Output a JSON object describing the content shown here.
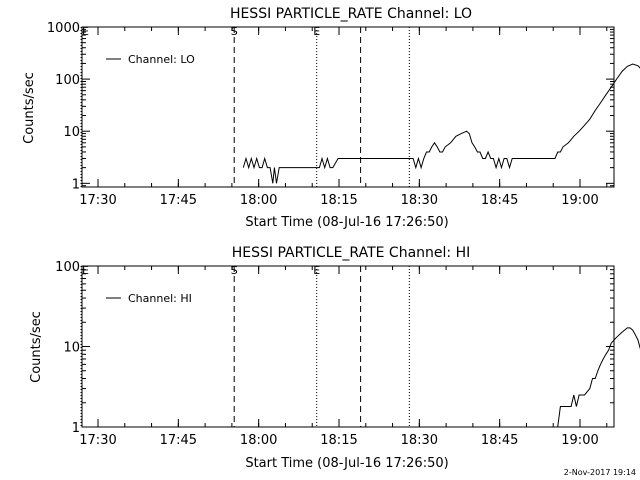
{
  "footer_date": "2-Nov-2017 19:14",
  "chart_data": [
    {
      "type": "line",
      "title": "HESSI PARTICLE_RATE Channel: LO",
      "xlabel": "Start Time (08-Jul-16 17:26:50)",
      "ylabel": "Counts/sec",
      "yscale": "log",
      "ylim": [
        0.85,
        1000
      ],
      "xlim_minutes": [
        17.5,
        62.0
      ],
      "x_ticks": [
        "17:30",
        "17:45",
        "18:00",
        "18:15",
        "18:30",
        "18:45",
        "19:00"
      ],
      "y_ticks": [
        "1",
        "10",
        "100",
        "1000"
      ],
      "legend": "Channel: LO",
      "markers": [
        {
          "label": "E",
          "minute": 0.0,
          "style": "dotted"
        },
        {
          "label": "S",
          "minute": 28.6,
          "style": "dashed"
        },
        {
          "label": "E",
          "minute": 44.0,
          "style": "dotted"
        },
        {
          "label": "",
          "minute": 52.2,
          "style": "dashed"
        },
        {
          "label": "",
          "minute": 61.3,
          "style": "dotted"
        }
      ],
      "series": [
        {
          "points": [
            [
              30.3,
              2
            ],
            [
              30.8,
              3
            ],
            [
              31.3,
              2
            ],
            [
              31.8,
              3
            ],
            [
              32.3,
              2
            ],
            [
              32.8,
              3
            ],
            [
              33.3,
              2
            ],
            [
              33.8,
              2
            ],
            [
              34.3,
              3
            ],
            [
              34.8,
              2
            ],
            [
              35.3,
              2
            ],
            [
              35.8,
              1
            ],
            [
              36.1,
              2
            ],
            [
              36.5,
              1
            ],
            [
              37.0,
              2
            ],
            [
              38.0,
              2
            ],
            [
              39.0,
              2
            ],
            [
              40.0,
              2
            ],
            [
              41.0,
              2
            ],
            [
              42.0,
              2
            ],
            [
              43.0,
              2
            ],
            [
              44.5,
              2
            ],
            [
              45.0,
              3
            ],
            [
              45.5,
              2
            ],
            [
              46.0,
              3
            ],
            [
              46.5,
              2
            ],
            [
              47.0,
              2
            ],
            [
              48.0,
              3
            ],
            [
              49.5,
              3
            ],
            [
              51.0,
              3
            ],
            [
              52.5,
              3
            ],
            [
              54.0,
              3
            ],
            [
              55.0,
              3
            ],
            [
              56.0,
              3
            ],
            [
              57.0,
              3
            ],
            [
              58.0,
              3
            ],
            [
              59.0,
              3
            ],
            [
              60.0,
              3
            ],
            [
              61.0,
              3
            ],
            [
              62.0,
              3
            ],
            [
              62.5,
              2
            ],
            [
              63.0,
              3
            ],
            [
              63.5,
              2
            ],
            [
              64.0,
              3
            ],
            [
              64.5,
              4
            ],
            [
              65.0,
              4
            ],
            [
              65.5,
              5
            ],
            [
              66.0,
              6
            ],
            [
              66.5,
              5
            ],
            [
              67.0,
              4
            ],
            [
              67.5,
              4
            ],
            [
              68.0,
              5
            ],
            [
              69.0,
              6
            ],
            [
              70.0,
              8
            ],
            [
              71.0,
              9
            ],
            [
              72.0,
              10
            ],
            [
              72.5,
              9
            ],
            [
              73.0,
              6
            ],
            [
              73.5,
              5
            ],
            [
              74.0,
              4
            ],
            [
              74.5,
              4
            ],
            [
              75.0,
              3
            ],
            [
              75.5,
              3
            ],
            [
              76.0,
              4
            ],
            [
              76.5,
              3
            ],
            [
              77.0,
              3
            ],
            [
              77.5,
              2
            ],
            [
              78.0,
              3
            ],
            [
              78.5,
              2
            ],
            [
              79.0,
              3
            ],
            [
              79.5,
              3
            ],
            [
              80.0,
              2
            ],
            [
              80.5,
              3
            ],
            [
              81.0,
              3
            ],
            [
              82.0,
              3
            ],
            [
              83.0,
              3
            ],
            [
              84.0,
              3
            ],
            [
              85.0,
              3
            ],
            [
              86.0,
              3
            ],
            [
              87.0,
              3
            ],
            [
              88.0,
              3
            ],
            [
              88.5,
              3
            ],
            [
              89.0,
              4
            ],
            [
              89.5,
              4
            ],
            [
              90.0,
              5
            ],
            [
              91.0,
              6
            ],
            [
              92.0,
              8
            ],
            [
              93.0,
              10
            ],
            [
              94.0,
              13
            ],
            [
              95.0,
              17
            ],
            [
              96.0,
              25
            ],
            [
              97.0,
              35
            ],
            [
              98.0,
              50
            ],
            [
              99.0,
              70
            ],
            [
              100.0,
              100
            ],
            [
              101.0,
              140
            ],
            [
              102.0,
              175
            ],
            [
              103.0,
              195
            ],
            [
              104.0,
              180
            ],
            [
              105.0,
              140
            ],
            [
              106.0,
              100
            ],
            [
              107.0,
              70
            ],
            [
              108.0,
              40
            ],
            [
              109.0,
              20
            ],
            [
              110.0,
              10
            ],
            [
              110.5,
              8
            ],
            [
              111.0,
              6
            ],
            [
              111.5,
              5
            ],
            [
              112.0,
              4
            ],
            [
              112.5,
              5
            ],
            [
              113.0,
              6
            ],
            [
              113.5,
              5
            ],
            [
              114.0,
              4
            ],
            [
              114.5,
              4
            ],
            [
              115.0,
              5
            ],
            [
              115.5,
              4
            ],
            [
              116.0,
              4
            ],
            [
              116.5,
              3
            ],
            [
              117.0,
              3
            ],
            [
              117.5,
              3
            ],
            [
              118.0,
              2
            ],
            [
              118.5,
              2
            ]
          ]
        }
      ]
    },
    {
      "type": "line",
      "title": "HESSI PARTICLE_RATE Channel: HI",
      "xlabel": "Start Time (08-Jul-16 17:26:50)",
      "ylabel": "Counts/sec",
      "yscale": "log",
      "ylim": [
        1,
        100
      ],
      "xlim_minutes": [
        17.5,
        62.0
      ],
      "x_ticks": [
        "17:30",
        "17:45",
        "18:00",
        "18:15",
        "18:30",
        "18:45",
        "19:00"
      ],
      "y_ticks": [
        "1",
        "10",
        "100"
      ],
      "legend": "Channel: HI",
      "markers": [
        {
          "label": "E",
          "minute": 0.0,
          "style": "dotted"
        },
        {
          "label": "S",
          "minute": 28.6,
          "style": "dashed"
        },
        {
          "label": "E",
          "minute": 44.0,
          "style": "dotted"
        },
        {
          "label": "",
          "minute": 52.2,
          "style": "dashed"
        },
        {
          "label": "",
          "minute": 61.3,
          "style": "dotted"
        }
      ],
      "series": [
        {
          "points": [
            [
              88.0,
              1
            ],
            [
              89.0,
              1
            ],
            [
              89.5,
              1.8
            ],
            [
              90.5,
              1.8
            ],
            [
              91.5,
              1.8
            ],
            [
              92.0,
              2.5
            ],
            [
              92.5,
              1.8
            ],
            [
              93.0,
              2.5
            ],
            [
              94.0,
              2.5
            ],
            [
              95.0,
              3
            ],
            [
              95.5,
              4
            ],
            [
              96.0,
              4
            ],
            [
              96.5,
              5
            ],
            [
              97.0,
              6
            ],
            [
              97.5,
              7
            ],
            [
              98.0,
              8
            ],
            [
              98.5,
              9
            ],
            [
              99.0,
              11
            ],
            [
              99.5,
              12
            ],
            [
              100.0,
              13
            ],
            [
              100.5,
              14
            ],
            [
              101.0,
              15
            ],
            [
              101.5,
              16
            ],
            [
              102.0,
              17
            ],
            [
              102.5,
              17
            ],
            [
              103.0,
              16
            ],
            [
              103.5,
              14
            ],
            [
              104.0,
              12
            ],
            [
              104.5,
              9
            ],
            [
              105.0,
              6
            ],
            [
              105.5,
              4
            ],
            [
              106.0,
              2.5
            ],
            [
              106.5,
              1.8
            ],
            [
              107.0,
              1.2
            ],
            [
              107.3,
              1
            ]
          ]
        }
      ]
    }
  ]
}
